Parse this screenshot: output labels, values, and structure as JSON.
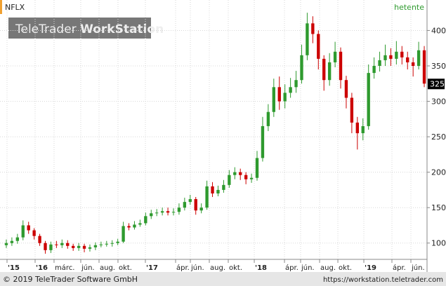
{
  "chart_data": {
    "type": "candlestick",
    "title": "NFLX",
    "interval": "hetente",
    "watermark": {
      "brand": "TeleTrader",
      "product": "WorkStation"
    },
    "footer": {
      "copyright": "© 2019 TeleTrader Software GmbH",
      "url": "https://workstation.teletrader.com"
    },
    "up_color": "#2e9a2e",
    "down_color": "#cc0000",
    "grid": true,
    "xlim": [
      0,
      76
    ],
    "xticks": [
      {
        "value": 0.63,
        "label": "'15"
      },
      {
        "value": 5.67,
        "label": "'16"
      },
      {
        "value": 9.07,
        "label": "márc."
      },
      {
        "value": 13.86,
        "label": "jún."
      },
      {
        "value": 17.14,
        "label": "aug."
      },
      {
        "value": 20.54,
        "label": "okt."
      },
      {
        "value": 25.46,
        "label": "'17"
      },
      {
        "value": 30.88,
        "label": "ápr."
      },
      {
        "value": 33.53,
        "label": "jún."
      },
      {
        "value": 36.93,
        "label": "aug."
      },
      {
        "value": 40.33,
        "label": "okt."
      },
      {
        "value": 45.0,
        "label": "'18"
      },
      {
        "value": 50.42,
        "label": "ápr."
      },
      {
        "value": 53.31,
        "label": "jún."
      },
      {
        "value": 56.72,
        "label": "aug."
      },
      {
        "value": 60.0,
        "label": "okt."
      },
      {
        "value": 64.66,
        "label": "'19"
      },
      {
        "value": 69.7,
        "label": "ápr."
      },
      {
        "value": 73.1,
        "label": "jún."
      }
    ],
    "ylim": [
      77,
      440
    ],
    "yticks": [
      100,
      150,
      200,
      250,
      300,
      350,
      400
    ],
    "x": [
      0.5,
      1.5,
      2.5,
      3.5,
      4.5,
      5.5,
      6.5,
      7.5,
      8.5,
      9.5,
      10.5,
      11.5,
      12.5,
      13.5,
      14.5,
      15.5,
      16.5,
      17.5,
      18.5,
      19.5,
      20.5,
      21.5,
      22.5,
      23.5,
      24.5,
      25.5,
      26.5,
      27.5,
      28.5,
      29.5,
      30.5,
      31.5,
      32.5,
      33.5,
      34.5,
      35.5,
      36.5,
      37.5,
      38.5,
      39.5,
      40.5,
      41.5,
      42.5,
      43.5,
      44.5,
      45.5,
      46.5,
      47.5,
      48.5,
      49.5,
      50.5,
      51.5,
      52.5,
      53.5,
      54.5,
      55.5,
      56.5,
      57.5,
      58.5,
      59.5,
      60.5,
      61.5,
      62.5,
      63.5,
      64.5,
      65.5,
      66.5,
      67.5,
      68.5,
      69.5,
      70.5,
      71.5,
      72.5,
      73.5,
      74.5,
      75.5
    ],
    "open": [
      97,
      100,
      103,
      108,
      125,
      118,
      110,
      100,
      90,
      98,
      97,
      100,
      96,
      93,
      96,
      92,
      94,
      97,
      98,
      99,
      100,
      102,
      124,
      122,
      126,
      128,
      138,
      142,
      143,
      145,
      143,
      144,
      150,
      158,
      162,
      146,
      150,
      180,
      170,
      175,
      182,
      196,
      200,
      196,
      190,
      192,
      220,
      265,
      285,
      320,
      300,
      312,
      320,
      330,
      365,
      410,
      395,
      360,
      330,
      355,
      370,
      330,
      305,
      270,
      255,
      265,
      340,
      350,
      358,
      365,
      360,
      370,
      362,
      355,
      350,
      372
    ],
    "high": [
      105,
      108,
      113,
      132,
      130,
      121,
      113,
      103,
      102,
      103,
      105,
      104,
      99,
      100,
      99,
      98,
      101,
      102,
      103,
      104,
      106,
      130,
      128,
      131,
      133,
      143,
      147,
      148,
      150,
      150,
      149,
      156,
      164,
      168,
      165,
      156,
      188,
      186,
      181,
      189,
      203,
      207,
      205,
      200,
      198,
      230,
      278,
      296,
      332,
      335,
      324,
      333,
      343,
      380,
      425,
      420,
      400,
      365,
      368,
      384,
      376,
      336,
      312,
      278,
      276,
      352,
      362,
      370,
      380,
      375,
      385,
      378,
      370,
      362,
      384,
      378
    ],
    "low": [
      93,
      96,
      99,
      104,
      113,
      105,
      96,
      85,
      86,
      93,
      93,
      92,
      89,
      89,
      87,
      88,
      90,
      94,
      95,
      95,
      97,
      100,
      118,
      119,
      123,
      125,
      134,
      138,
      139,
      139,
      139,
      140,
      146,
      154,
      140,
      142,
      147,
      165,
      166,
      171,
      178,
      190,
      189,
      183,
      185,
      188,
      215,
      258,
      278,
      288,
      290,
      305,
      312,
      325,
      358,
      382,
      345,
      315,
      322,
      348,
      318,
      290,
      255,
      232,
      245,
      260,
      332,
      342,
      350,
      350,
      352,
      352,
      345,
      335,
      345,
      320
    ],
    "close": [
      100,
      103,
      108,
      125,
      118,
      110,
      100,
      90,
      98,
      97,
      100,
      96,
      93,
      96,
      92,
      94,
      97,
      98,
      99,
      100,
      102,
      124,
      122,
      126,
      128,
      138,
      142,
      143,
      145,
      143,
      144,
      150,
      158,
      162,
      146,
      150,
      180,
      170,
      175,
      182,
      196,
      200,
      196,
      190,
      192,
      220,
      265,
      285,
      320,
      300,
      312,
      320,
      330,
      365,
      410,
      395,
      360,
      330,
      355,
      370,
      330,
      305,
      270,
      255,
      265,
      340,
      350,
      358,
      365,
      360,
      370,
      362,
      355,
      350,
      372,
      325
    ]
  }
}
